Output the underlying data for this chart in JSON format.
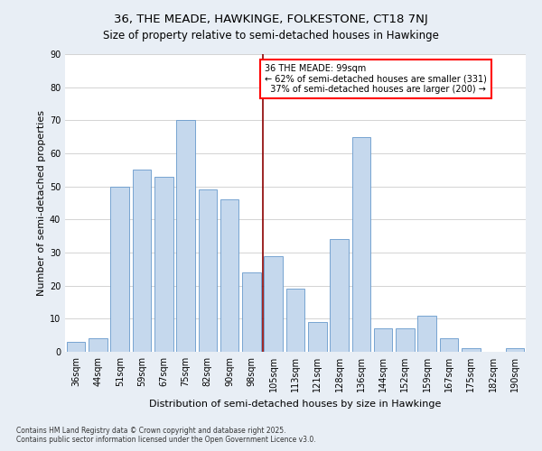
{
  "title": "36, THE MEADE, HAWKINGE, FOLKESTONE, CT18 7NJ",
  "subtitle": "Size of property relative to semi-detached houses in Hawkinge",
  "xlabel": "Distribution of semi-detached houses by size in Hawkinge",
  "ylabel": "Number of semi-detached properties",
  "categories": [
    "36sqm",
    "44sqm",
    "51sqm",
    "59sqm",
    "67sqm",
    "75sqm",
    "82sqm",
    "90sqm",
    "98sqm",
    "105sqm",
    "113sqm",
    "121sqm",
    "128sqm",
    "136sqm",
    "144sqm",
    "152sqm",
    "159sqm",
    "167sqm",
    "175sqm",
    "182sqm",
    "190sqm"
  ],
  "values": [
    3,
    4,
    50,
    55,
    53,
    70,
    49,
    46,
    24,
    29,
    19,
    9,
    34,
    65,
    7,
    7,
    11,
    4,
    1,
    0,
    1
  ],
  "bar_color": "#c5d8ed",
  "bar_edge_color": "#6699cc",
  "property_line_x": 8.5,
  "property_label": "36 THE MEADE: 99sqm",
  "smaller_pct": "62% of semi-detached houses are smaller (331)",
  "larger_pct": "37% of semi-detached houses are larger (200)",
  "vline_color": "#8b0000",
  "ylim": [
    0,
    90
  ],
  "yticks": [
    0,
    10,
    20,
    30,
    40,
    50,
    60,
    70,
    80,
    90
  ],
  "footnote1": "Contains HM Land Registry data © Crown copyright and database right 2025.",
  "footnote2": "Contains public sector information licensed under the Open Government Licence v3.0.",
  "background_color": "#e8eef5",
  "plot_bg_color": "#ffffff",
  "grid_color": "#cccccc",
  "title_fontsize": 9.5,
  "subtitle_fontsize": 8.5,
  "axis_label_fontsize": 8,
  "tick_fontsize": 7,
  "annot_fontsize": 7,
  "footnote_fontsize": 5.5
}
